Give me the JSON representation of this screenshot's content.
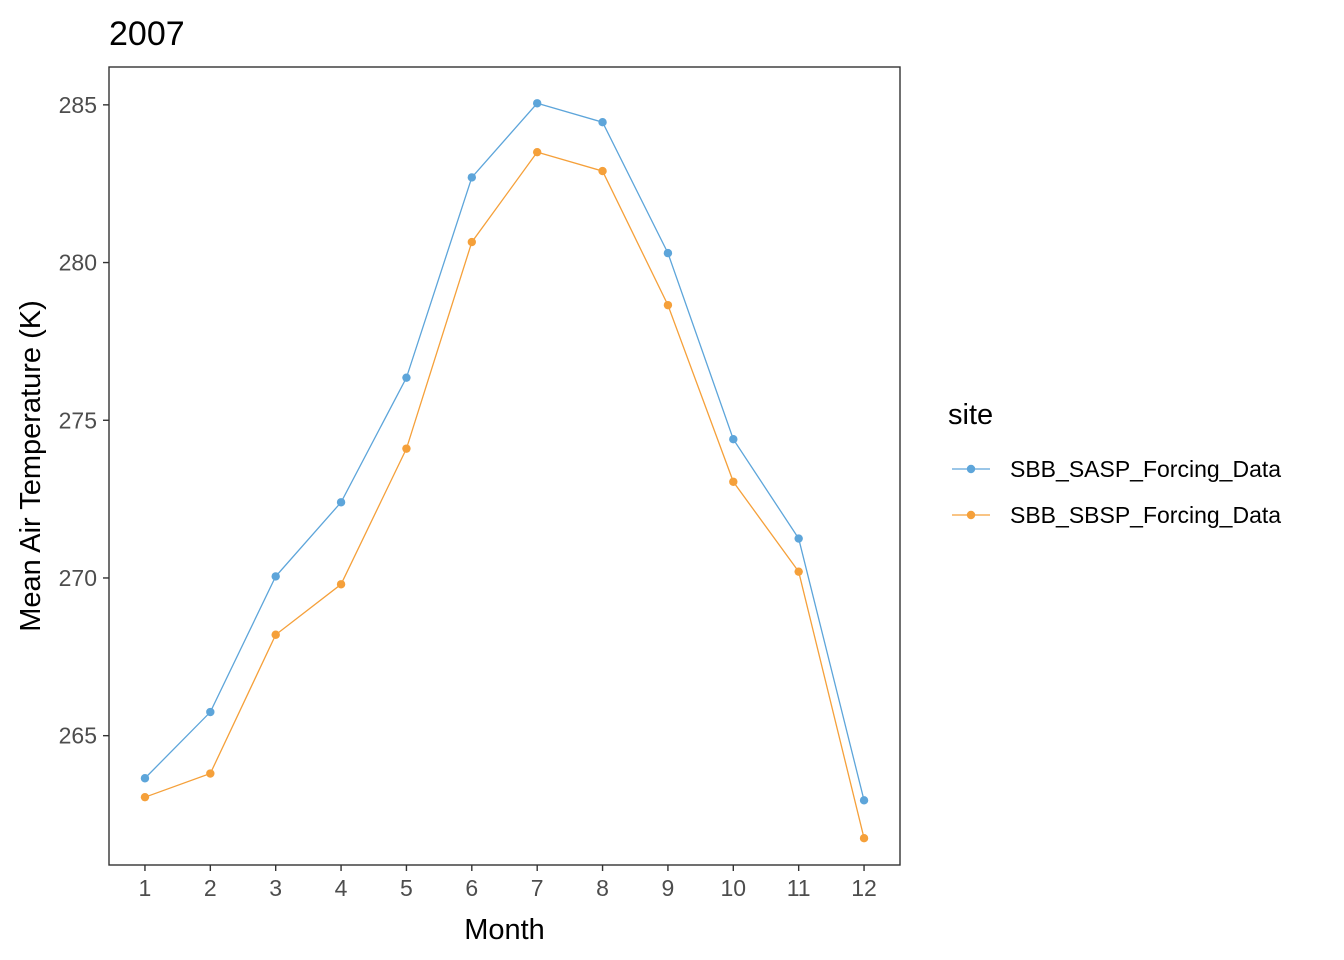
{
  "chart_data": {
    "type": "line",
    "title": "2007",
    "xlabel": "Month",
    "ylabel": "Mean Air Temperature (K)",
    "x": [
      1,
      2,
      3,
      4,
      5,
      6,
      7,
      8,
      9,
      10,
      11,
      12
    ],
    "xlim": [
      0.45,
      12.55
    ],
    "ylim": [
      260.9,
      286.2
    ],
    "x_ticks": [
      1,
      2,
      3,
      4,
      5,
      6,
      7,
      8,
      9,
      10,
      11,
      12
    ],
    "y_ticks": [
      265,
      270,
      275,
      280,
      285
    ],
    "grid": false,
    "legend": {
      "title": "site",
      "position": "right"
    },
    "series": [
      {
        "name": "SBB_SASP_Forcing_Data",
        "color": "#5DA5DA",
        "values": [
          263.65,
          265.75,
          270.05,
          272.4,
          276.35,
          282.7,
          285.05,
          284.45,
          280.3,
          274.4,
          271.25,
          262.95
        ]
      },
      {
        "name": "SBB_SBSP_Forcing_Data",
        "color": "#F5A03A",
        "values": [
          263.05,
          263.8,
          268.2,
          269.8,
          274.1,
          280.65,
          283.5,
          282.9,
          278.65,
          273.05,
          270.2,
          261.75
        ]
      }
    ]
  }
}
